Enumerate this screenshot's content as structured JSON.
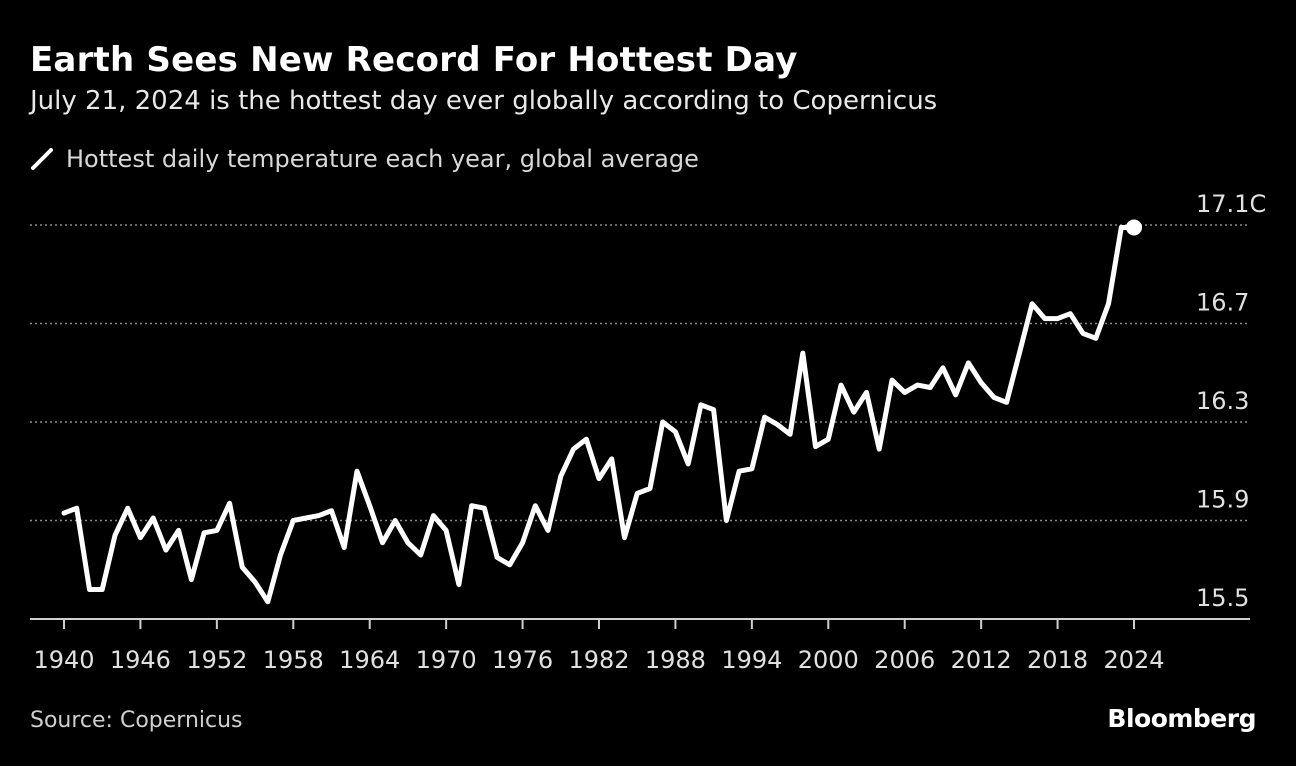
{
  "title": "Earth Sees New Record For Hottest Day",
  "subtitle": "July 21, 2024 is the hottest day ever globally according to Copernicus",
  "source": "Source: Copernicus",
  "brand": "Bloomberg",
  "colors": {
    "background": "#000000",
    "line": "#ffffff",
    "grid": "#8a8a8a",
    "text": "#e0e0e0"
  },
  "chart_data": {
    "type": "line",
    "title": "Earth Sees New Record For Hottest Day",
    "xlabel": "",
    "ylabel": "",
    "xlim": [
      1940,
      2024
    ],
    "ylim": [
      15.5,
      17.1
    ],
    "y_ticks": [
      15.5,
      15.9,
      16.3,
      16.7,
      17.1
    ],
    "y_tick_labels": [
      "15.5",
      "15.9",
      "16.3",
      "16.7",
      "17.1C"
    ],
    "x_ticks": [
      1940,
      1946,
      1952,
      1958,
      1964,
      1970,
      1976,
      1982,
      1988,
      1994,
      2000,
      2006,
      2012,
      2018,
      2024
    ],
    "x_tick_labels": [
      "1940",
      "1946",
      "1952",
      "1958",
      "1964",
      "1970",
      "1976",
      "1982",
      "1988",
      "1994",
      "2000",
      "2006",
      "2012",
      "2018",
      "2024"
    ],
    "grid": "horizontal dotted",
    "legend_position": "top-left",
    "series": [
      {
        "name": "Hottest daily temperature each year, global average",
        "x": [
          1940,
          1941,
          1942,
          1943,
          1944,
          1945,
          1946,
          1947,
          1948,
          1949,
          1950,
          1951,
          1952,
          1953,
          1954,
          1955,
          1956,
          1957,
          1958,
          1959,
          1960,
          1961,
          1962,
          1963,
          1964,
          1965,
          1966,
          1967,
          1968,
          1969,
          1970,
          1971,
          1972,
          1973,
          1974,
          1975,
          1976,
          1977,
          1978,
          1979,
          1980,
          1981,
          1982,
          1983,
          1984,
          1985,
          1986,
          1987,
          1988,
          1989,
          1990,
          1991,
          1992,
          1993,
          1994,
          1995,
          1996,
          1997,
          1998,
          1999,
          2000,
          2001,
          2002,
          2003,
          2004,
          2005,
          2006,
          2007,
          2008,
          2009,
          2010,
          2011,
          2012,
          2013,
          2014,
          2015,
          2016,
          2017,
          2018,
          2019,
          2020,
          2021,
          2022,
          2023,
          2024
        ],
        "values": [
          15.93,
          15.95,
          15.62,
          15.62,
          15.84,
          15.95,
          15.83,
          15.91,
          15.78,
          15.86,
          15.66,
          15.85,
          15.86,
          15.97,
          15.71,
          15.65,
          15.57,
          15.76,
          15.9,
          15.91,
          15.92,
          15.94,
          15.79,
          16.1,
          15.96,
          15.81,
          15.9,
          15.81,
          15.76,
          15.92,
          15.86,
          15.64,
          15.96,
          15.95,
          15.75,
          15.72,
          15.81,
          15.96,
          15.86,
          16.08,
          16.19,
          16.23,
          16.07,
          16.15,
          15.83,
          16.01,
          16.03,
          16.3,
          16.26,
          16.13,
          16.37,
          16.35,
          15.9,
          16.1,
          16.11,
          16.32,
          16.29,
          16.25,
          16.58,
          16.2,
          16.23,
          16.45,
          16.34,
          16.42,
          16.19,
          16.47,
          16.42,
          16.45,
          16.44,
          16.52,
          16.41,
          16.54,
          16.46,
          16.4,
          16.38,
          16.58,
          16.78,
          16.72,
          16.72,
          16.74,
          16.66,
          16.64,
          16.78,
          17.09,
          17.09
        ]
      }
    ],
    "highlight_point": {
      "x": 2024,
      "y": 17.09,
      "marker": "dot"
    }
  }
}
